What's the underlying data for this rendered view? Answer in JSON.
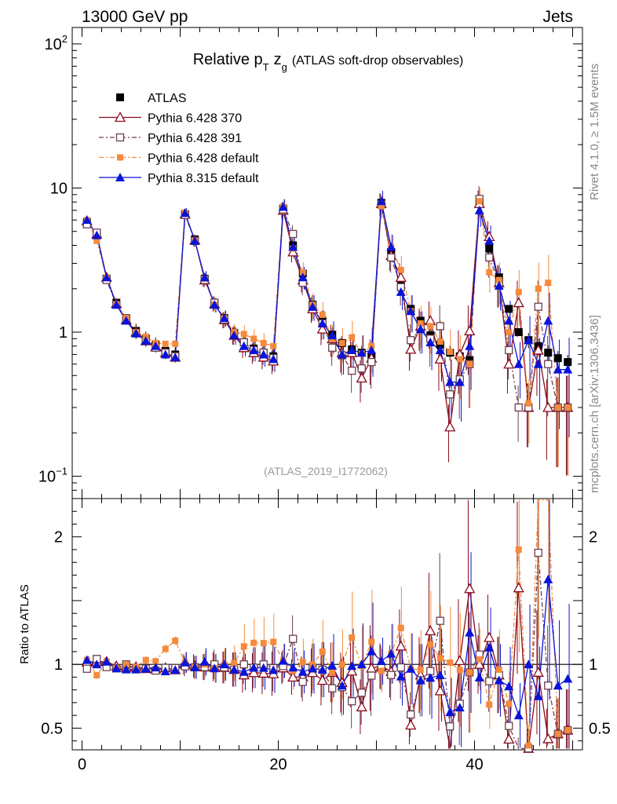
{
  "header": {
    "left": "13000 GeV pp",
    "right": "Jets"
  },
  "side_labels": {
    "rivet": "Rivet 4.1.0, ≥ 1.5M events",
    "mcplots": "mcplots.cern.ch [arXiv:1306.3436]"
  },
  "watermark": "(ATLAS_2019_I1772062)",
  "title": {
    "prefix": "Relative p",
    "sub_t": "T",
    "z": "z",
    "sub_g": "g",
    "suffix": "(ATLAS soft-drop observables)"
  },
  "colors": {
    "atlas": "#000000",
    "p370": "#8b0a1a",
    "p391": "#6b4050",
    "pdef": "#f58a3c",
    "p8": "#0a14d8"
  },
  "chart_data": {
    "type": "scatter",
    "title": "Relative pT zg (ATLAS soft-drop observables)",
    "xlabel": "",
    "ylabel_ratio": "Ratio to ATLAS",
    "xlim": [
      -1,
      51
    ],
    "ylim_main": [
      0.07,
      130
    ],
    "ylim_ratio": [
      0.33,
      2.3
    ],
    "y_scale_main": "log",
    "main_ticks": [
      {
        "value": 0.1,
        "base": "10",
        "exp": "−1"
      },
      {
        "value": 1,
        "base": "1",
        "exp": ""
      },
      {
        "value": 10,
        "base": "10",
        "exp": ""
      },
      {
        "value": 100,
        "base": "10",
        "exp": "2"
      }
    ],
    "x_ticks": [
      0,
      20,
      40
    ],
    "ratio_ticks": [
      0.5,
      1,
      2
    ],
    "legend": [
      "ATLAS",
      "Pythia 6.428 370",
      "Pythia 6.428 391",
      "Pythia 6.428 default",
      "Pythia 8.315 default"
    ],
    "x": [
      0.5,
      1.5,
      2.5,
      3.5,
      4.5,
      5.5,
      6.5,
      7.5,
      8.5,
      9.5,
      10.5,
      11.5,
      12.5,
      13.5,
      14.5,
      15.5,
      16.5,
      17.5,
      18.5,
      19.5,
      20.5,
      21.5,
      22.5,
      23.5,
      24.5,
      25.5,
      26.5,
      27.5,
      28.5,
      29.5,
      30.5,
      31.5,
      32.5,
      33.5,
      34.5,
      35.5,
      36.5,
      37.5,
      38.5,
      39.5,
      40.5,
      41.5,
      42.5,
      43.5,
      44.5,
      45.5,
      46.5,
      47.5,
      48.5,
      49.5
    ],
    "series": [
      {
        "name": "ATLAS",
        "marker": "square",
        "values": [
          5.8,
          4.7,
          2.35,
          1.6,
          1.25,
          1.02,
          0.9,
          0.82,
          0.74,
          0.7,
          6.6,
          4.4,
          2.35,
          1.6,
          1.25,
          0.99,
          0.85,
          0.77,
          0.72,
          0.68,
          7.2,
          4.0,
          2.55,
          1.55,
          1.2,
          0.96,
          0.84,
          0.76,
          0.72,
          0.68,
          7.9,
          3.6,
          2.1,
          1.45,
          1.2,
          0.95,
          0.82,
          0.72,
          0.68,
          0.64,
          7.8,
          3.8,
          2.4,
          1.45,
          1.0,
          0.88,
          0.8,
          0.72,
          0.66,
          0.62
        ]
      },
      {
        "name": "Pythia 6.428 370",
        "marker": "triangle-open",
        "style": "solid",
        "values": [
          5.9,
          4.8,
          2.4,
          1.58,
          1.22,
          1.0,
          0.87,
          0.79,
          0.72,
          0.67,
          6.6,
          4.35,
          2.3,
          1.57,
          1.22,
          0.95,
          0.78,
          0.72,
          0.67,
          0.63,
          7.0,
          3.6,
          2.3,
          1.45,
          1.05,
          0.9,
          0.72,
          0.72,
          0.48,
          0.66,
          7.8,
          3.4,
          2.4,
          0.76,
          1.1,
          1.2,
          0.65,
          0.22,
          0.7,
          1.02,
          7.8,
          4.6,
          2.2,
          0.6,
          1.6,
          0.3,
          0.75,
          0.3,
          0.3,
          0.3
        ]
      },
      {
        "name": "Pythia 6.428 391",
        "marker": "square-open",
        "style": "dashdot",
        "values": [
          5.6,
          4.9,
          2.3,
          1.55,
          1.25,
          0.98,
          0.87,
          0.78,
          0.72,
          0.68,
          6.5,
          4.3,
          2.3,
          1.6,
          1.22,
          0.95,
          0.85,
          0.75,
          0.72,
          0.66,
          7.1,
          4.8,
          2.2,
          1.5,
          1.15,
          0.78,
          0.69,
          0.54,
          0.56,
          0.62,
          7.7,
          3.3,
          2.05,
          0.88,
          1.05,
          0.9,
          1.1,
          0.37,
          0.47,
          0.6,
          8.4,
          3.3,
          2.2,
          0.75,
          0.3,
          0.3,
          1.5,
          0.6,
          0.3,
          0.3
        ]
      },
      {
        "name": "Pythia 6.428 default",
        "marker": "square-filled",
        "style": "dashdot",
        "values": [
          6.0,
          4.3,
          2.4,
          1.55,
          1.25,
          1.0,
          0.93,
          0.84,
          0.83,
          0.83,
          6.7,
          4.3,
          2.35,
          1.55,
          1.25,
          1.0,
          0.97,
          0.9,
          0.84,
          0.8,
          7.4,
          3.8,
          2.6,
          1.55,
          1.32,
          0.9,
          0.84,
          0.92,
          0.71,
          0.8,
          7.5,
          3.9,
          2.7,
          1.4,
          1.15,
          1.1,
          0.86,
          0.73,
          0.65,
          0.6,
          8.1,
          2.6,
          2.3,
          1.0,
          1.9,
          0.32,
          2.0,
          2.2,
          0.3,
          0.3
        ]
      },
      {
        "name": "Pythia 8.315 default",
        "marker": "triangle-filled",
        "style": "solid",
        "values": [
          6.0,
          4.7,
          2.4,
          1.55,
          1.2,
          0.98,
          0.87,
          0.8,
          0.7,
          0.67,
          6.7,
          4.3,
          2.4,
          1.55,
          1.25,
          0.95,
          0.8,
          0.75,
          0.7,
          0.65,
          7.4,
          3.9,
          2.4,
          1.5,
          1.15,
          0.95,
          0.7,
          0.75,
          0.72,
          0.75,
          8.1,
          3.9,
          1.9,
          1.4,
          1.05,
          0.85,
          0.75,
          0.45,
          0.45,
          0.8,
          7.0,
          4.3,
          2.1,
          1.2,
          0.6,
          0.88,
          0.6,
          1.2,
          0.55,
          0.55
        ]
      }
    ]
  }
}
